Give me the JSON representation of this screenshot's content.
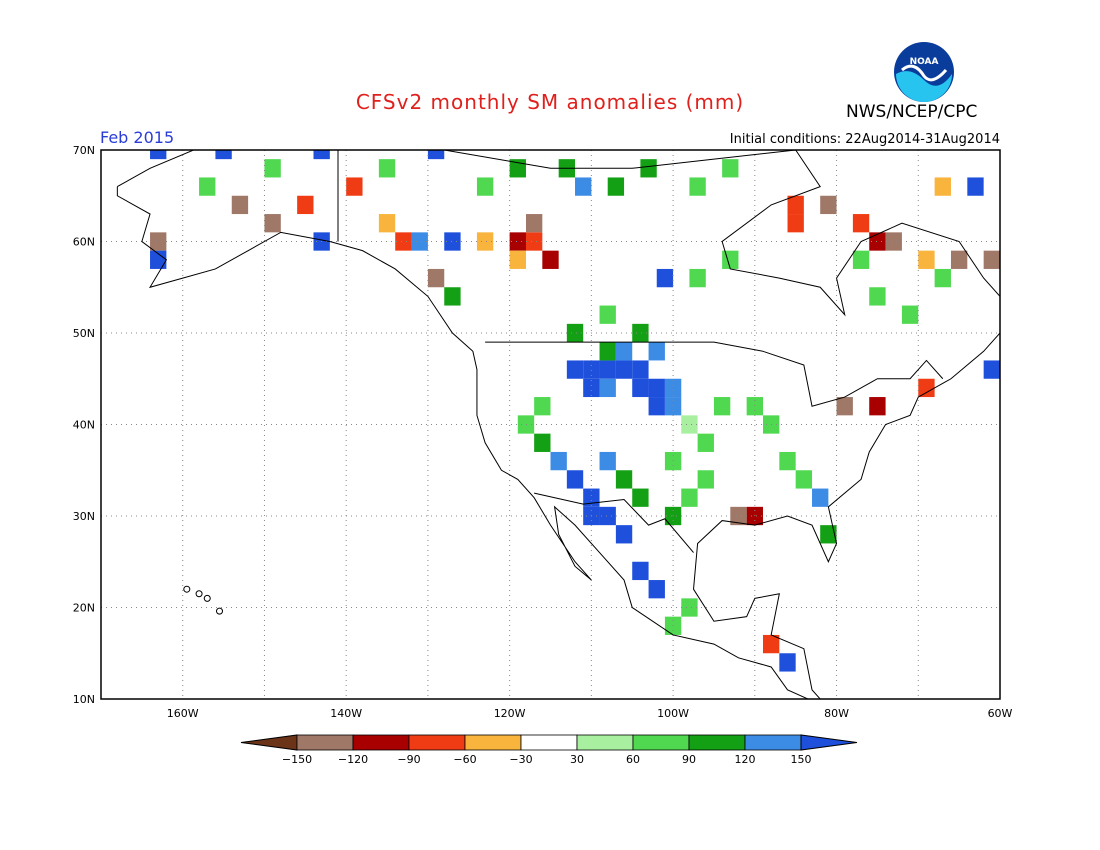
{
  "title": "CFSv2 monthly SM anomalies (mm)",
  "agency": "NWS/NCEP/CPC",
  "logo_text": "NOAA",
  "period": "Feb 2015",
  "initial_conditions": "Initial conditions: 22Aug2014-31Aug2014",
  "map": {
    "lat_labels": [
      "70N",
      "60N",
      "50N",
      "40N",
      "30N",
      "20N",
      "10N"
    ],
    "lon_labels": [
      "160W",
      "140W",
      "120W",
      "100W",
      "80W",
      "60W"
    ],
    "lat_range": [
      10,
      70
    ],
    "lon_range": [
      -170,
      -60
    ],
    "grid": "dotted"
  },
  "colorbar": {
    "labels": [
      "-150",
      "-120",
      "-90",
      "-60",
      "-30",
      "30",
      "60",
      "90",
      "120",
      "150"
    ],
    "colors": [
      "#6b3318",
      "#a07868",
      "#a80000",
      "#f03c14",
      "#f8b43c",
      "#ffffff",
      "#a8f0a0",
      "#50d850",
      "#14a014",
      "#3c8ce6",
      "#1e50dc"
    ]
  },
  "anomaly_cells": [
    {
      "lon": -112,
      "lat": 46,
      "value": 150
    },
    {
      "lon": -110,
      "lat": 46,
      "value": 150
    },
    {
      "lon": -108,
      "lat": 46,
      "value": 150
    },
    {
      "lon": -106,
      "lat": 46,
      "value": 150
    },
    {
      "lon": -104,
      "lat": 46,
      "value": 150
    },
    {
      "lon": -110,
      "lat": 44,
      "value": 150
    },
    {
      "lon": -108,
      "lat": 44,
      "value": 120
    },
    {
      "lon": -104,
      "lat": 44,
      "value": 150
    },
    {
      "lon": -102,
      "lat": 44,
      "value": 150
    },
    {
      "lon": -100,
      "lat": 44,
      "value": 120
    },
    {
      "lon": -102,
      "lat": 42,
      "value": 150
    },
    {
      "lon": -100,
      "lat": 42,
      "value": 120
    },
    {
      "lon": -106,
      "lat": 48,
      "value": 120
    },
    {
      "lon": -108,
      "lat": 48,
      "value": 90
    },
    {
      "lon": -102,
      "lat": 48,
      "value": 120
    },
    {
      "lon": -112,
      "lat": 50,
      "value": 90
    },
    {
      "lon": -108,
      "lat": 52,
      "value": 60
    },
    {
      "lon": -104,
      "lat": 50,
      "value": 90
    },
    {
      "lon": -112,
      "lat": 34,
      "value": 150
    },
    {
      "lon": -110,
      "lat": 32,
      "value": 150
    },
    {
      "lon": -108,
      "lat": 30,
      "value": 150
    },
    {
      "lon": -110,
      "lat": 30,
      "value": 150
    },
    {
      "lon": -106,
      "lat": 28,
      "value": 150
    },
    {
      "lon": -104,
      "lat": 24,
      "value": 150
    },
    {
      "lon": -102,
      "lat": 22,
      "value": 150
    },
    {
      "lon": -114,
      "lat": 36,
      "value": 120
    },
    {
      "lon": -116,
      "lat": 38,
      "value": 90
    },
    {
      "lon": -118,
      "lat": 40,
      "value": 60
    },
    {
      "lon": -116,
      "lat": 42,
      "value": 60
    },
    {
      "lon": -108,
      "lat": 36,
      "value": 120
    },
    {
      "lon": -106,
      "lat": 34,
      "value": 90
    },
    {
      "lon": -104,
      "lat": 32,
      "value": 90
    },
    {
      "lon": -100,
      "lat": 30,
      "value": 90
    },
    {
      "lon": -98,
      "lat": 32,
      "value": 60
    },
    {
      "lon": -96,
      "lat": 34,
      "value": 60
    },
    {
      "lon": -100,
      "lat": 36,
      "value": 60
    },
    {
      "lon": -98,
      "lat": 40,
      "value": 30
    },
    {
      "lon": -96,
      "lat": 38,
      "value": 60
    },
    {
      "lon": -94,
      "lat": 42,
      "value": 60
    },
    {
      "lon": -90,
      "lat": 42,
      "value": 60
    },
    {
      "lon": -88,
      "lat": 40,
      "value": 60
    },
    {
      "lon": -86,
      "lat": 36,
      "value": 60
    },
    {
      "lon": -84,
      "lat": 34,
      "value": 60
    },
    {
      "lon": -82,
      "lat": 32,
      "value": 120
    },
    {
      "lon": -81,
      "lat": 28,
      "value": 90
    },
    {
      "lon": -90,
      "lat": 30,
      "value": -120
    },
    {
      "lon": -92,
      "lat": 30,
      "value": -150
    },
    {
      "lon": -98,
      "lat": 20,
      "value": 60
    },
    {
      "lon": -100,
      "lat": 18,
      "value": 60
    },
    {
      "lon": -88,
      "lat": 16,
      "value": -90
    },
    {
      "lon": -86,
      "lat": 14,
      "value": 150
    },
    {
      "lon": -84,
      "lat": 10,
      "value": -30
    },
    {
      "lon": -119,
      "lat": 60,
      "value": -120
    },
    {
      "lon": -117,
      "lat": 60,
      "value": -90
    },
    {
      "lon": -115,
      "lat": 58,
      "value": -120
    },
    {
      "lon": -119,
      "lat": 58,
      "value": -60
    },
    {
      "lon": -121,
      "lat": 62,
      "value": -30
    },
    {
      "lon": -117,
      "lat": 62,
      "value": -150
    },
    {
      "lon": -113,
      "lat": 60,
      "value": -30
    },
    {
      "lon": -123,
      "lat": 60,
      "value": -60
    },
    {
      "lon": -127,
      "lat": 60,
      "value": 150
    },
    {
      "lon": -131,
      "lat": 60,
      "value": 120
    },
    {
      "lon": -133,
      "lat": 60,
      "value": -90
    },
    {
      "lon": -135,
      "lat": 62,
      "value": -60
    },
    {
      "lon": -129,
      "lat": 56,
      "value": -150
    },
    {
      "lon": -127,
      "lat": 54,
      "value": 90
    },
    {
      "lon": -85,
      "lat": 62,
      "value": -90
    },
    {
      "lon": -85,
      "lat": 64,
      "value": -90
    },
    {
      "lon": -81,
      "lat": 64,
      "value": -150
    },
    {
      "lon": -77,
      "lat": 62,
      "value": -90
    },
    {
      "lon": -75,
      "lat": 60,
      "value": -120
    },
    {
      "lon": -73,
      "lat": 60,
      "value": -150
    },
    {
      "lon": -69,
      "lat": 58,
      "value": -60
    },
    {
      "lon": -65,
      "lat": 58,
      "value": -150
    },
    {
      "lon": -61,
      "lat": 58,
      "value": -150
    },
    {
      "lon": -69,
      "lat": 44,
      "value": -90
    },
    {
      "lon": -61,
      "lat": 46,
      "value": 150
    },
    {
      "lon": -75,
      "lat": 42,
      "value": -120
    },
    {
      "lon": -79,
      "lat": 42,
      "value": -150
    },
    {
      "lon": -153,
      "lat": 64,
      "value": -150
    },
    {
      "lon": -163,
      "lat": 60,
      "value": -150
    },
    {
      "lon": -157,
      "lat": 60,
      "value": -30
    },
    {
      "lon": -149,
      "lat": 62,
      "value": -150
    },
    {
      "lon": -145,
      "lat": 64,
      "value": -90
    },
    {
      "lon": -139,
      "lat": 66,
      "value": -90
    },
    {
      "lon": -143,
      "lat": 60,
      "value": 150
    },
    {
      "lon": -163,
      "lat": 70,
      "value": 150
    },
    {
      "lon": -155,
      "lat": 70,
      "value": 150
    },
    {
      "lon": -143,
      "lat": 70,
      "value": 150
    },
    {
      "lon": -129,
      "lat": 70,
      "value": 150
    },
    {
      "lon": -119,
      "lat": 68,
      "value": 90
    },
    {
      "lon": -113,
      "lat": 68,
      "value": 90
    },
    {
      "lon": -107,
      "lat": 66,
      "value": 90
    },
    {
      "lon": -103,
      "lat": 68,
      "value": 90
    },
    {
      "lon": -97,
      "lat": 66,
      "value": 60
    },
    {
      "lon": -93,
      "lat": 68,
      "value": 60
    },
    {
      "lon": -111,
      "lat": 66,
      "value": 120
    },
    {
      "lon": -123,
      "lat": 66,
      "value": 60
    },
    {
      "lon": -135,
      "lat": 68,
      "value": 60
    },
    {
      "lon": -149,
      "lat": 68,
      "value": 60
    },
    {
      "lon": -157,
      "lat": 66,
      "value": 60
    },
    {
      "lon": -93,
      "lat": 58,
      "value": 60
    },
    {
      "lon": -97,
      "lat": 56,
      "value": 60
    },
    {
      "lon": -101,
      "lat": 56,
      "value": 150
    },
    {
      "lon": -67,
      "lat": 56,
      "value": 60
    },
    {
      "lon": -71,
      "lat": 52,
      "value": 60
    },
    {
      "lon": -77,
      "lat": 58,
      "value": 60
    },
    {
      "lon": -75,
      "lat": 54,
      "value": 60
    },
    {
      "lon": -63,
      "lat": 66,
      "value": 150
    },
    {
      "lon": -67,
      "lat": 66,
      "value": -60
    },
    {
      "lon": -163,
      "lat": 58,
      "value": 150
    }
  ]
}
